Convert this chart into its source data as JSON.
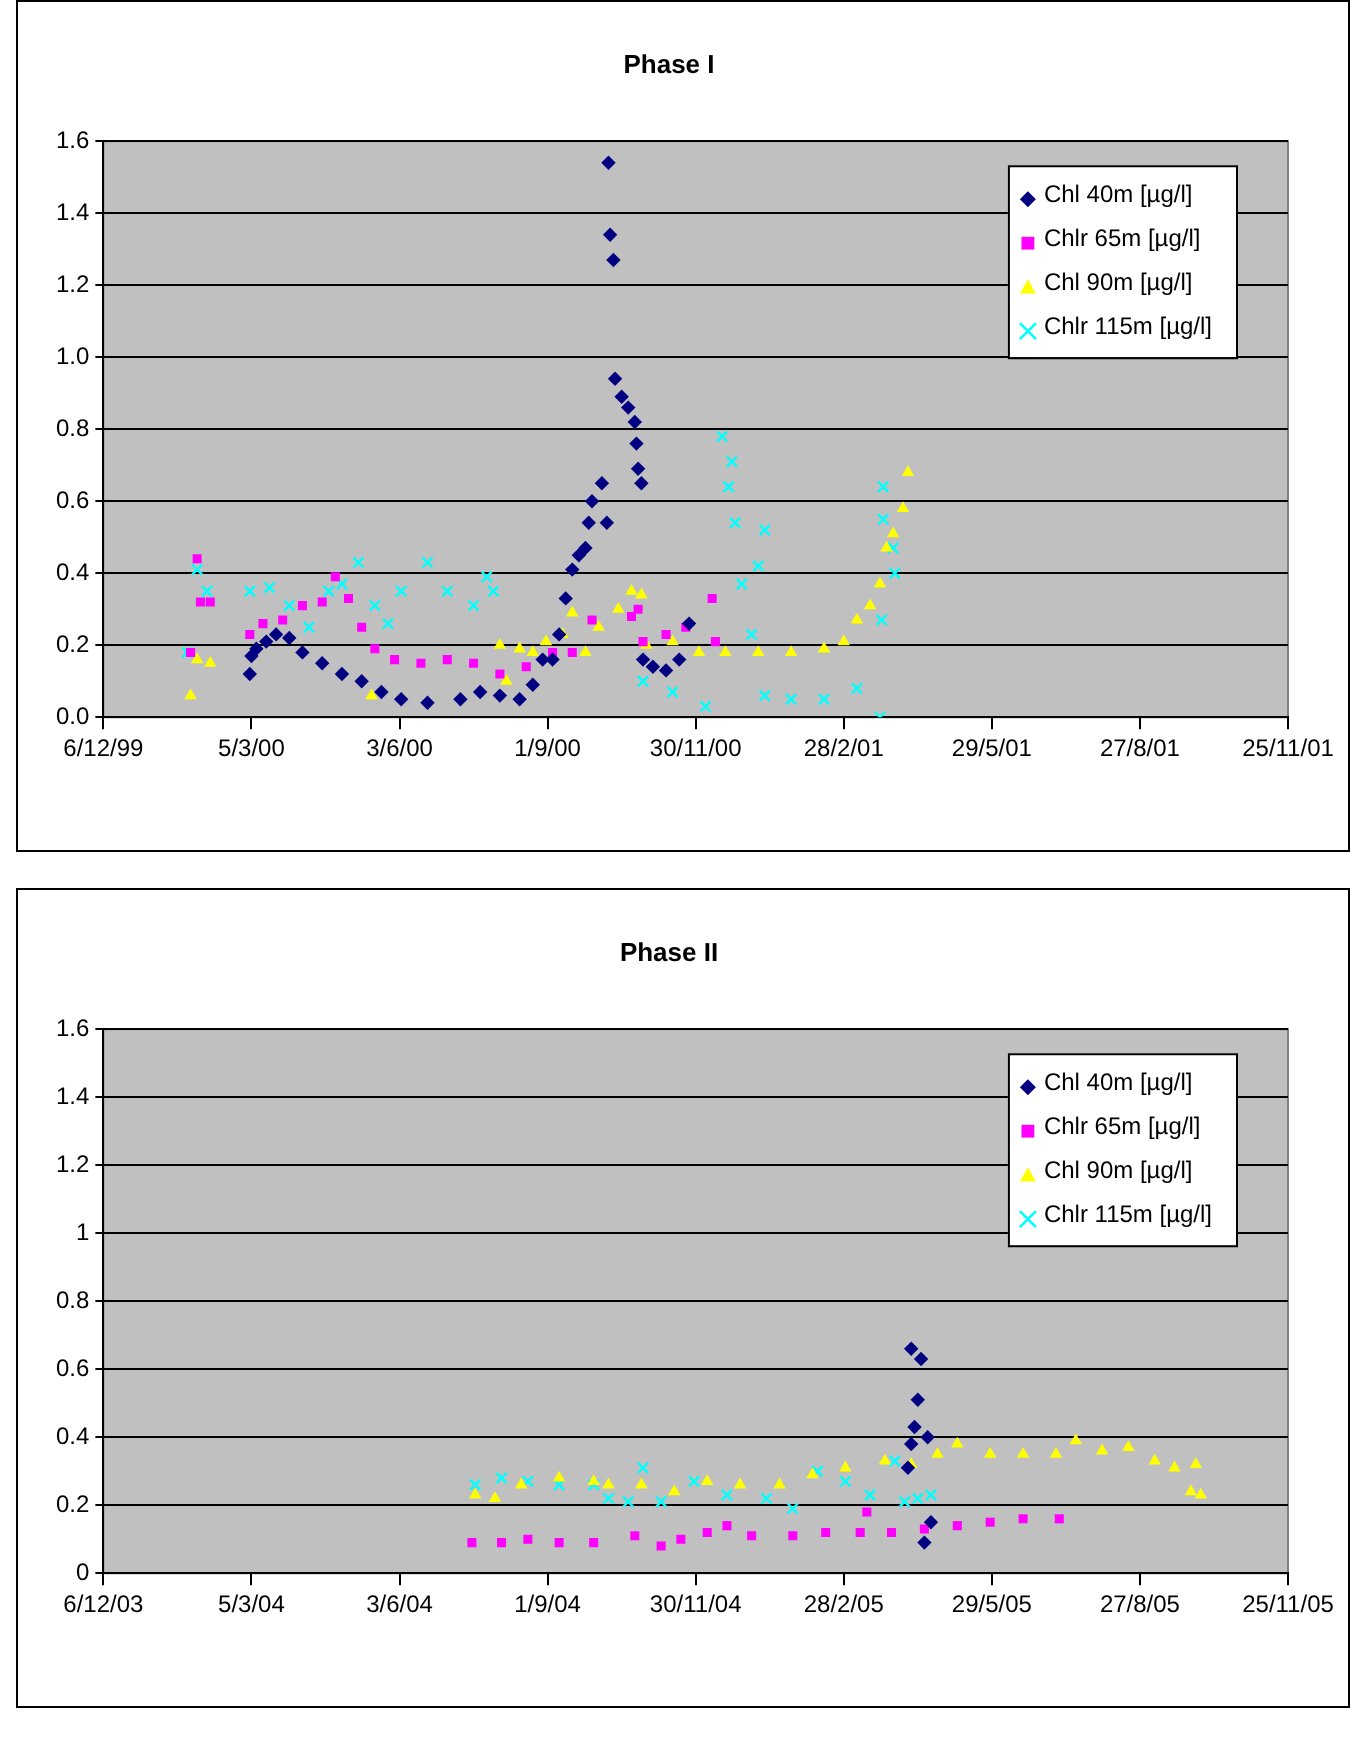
{
  "chart_data": [
    {
      "type": "scatter",
      "title": "Phase I",
      "grid": "y",
      "legend": "top right",
      "xlim": [
        "1999-12-06",
        "2001-11-25"
      ],
      "ylim": [
        0,
        1.6
      ],
      "xticks": [
        {
          "value": "1999-12-06",
          "label": "6/12/99"
        },
        {
          "value": "2000-03-05",
          "label": "5/3/00"
        },
        {
          "value": "2000-06-03",
          "label": "3/6/00"
        },
        {
          "value": "2000-09-01",
          "label": "1/9/00"
        },
        {
          "value": "2000-11-30",
          "label": "30/11/00"
        },
        {
          "value": "2001-02-28",
          "label": "28/2/01"
        },
        {
          "value": "2001-05-29",
          "label": "29/5/01"
        },
        {
          "value": "2001-08-27",
          "label": "27/8/01"
        },
        {
          "value": "2001-11-25",
          "label": "25/11/01"
        }
      ],
      "yticks": [
        {
          "value": 0,
          "label": "0.0"
        },
        0.2,
        0.4,
        0.6,
        0.8,
        {
          "value": 1,
          "label": "1.0"
        },
        1.2,
        1.4,
        1.6
      ],
      "series": [
        {
          "name": "Chl 40m [µg/l]",
          "color": "#000080",
          "marker": "diamond",
          "x": [
            "2000-03-04",
            "2000-03-05",
            "2000-03-08",
            "2000-03-14",
            "2000-03-20",
            "2000-03-28",
            "2000-04-05",
            "2000-04-17",
            "2000-04-29",
            "2000-05-11",
            "2000-05-23",
            "2000-06-04",
            "2000-06-20",
            "2000-07-10",
            "2000-07-22",
            "2000-08-03",
            "2000-08-15",
            "2000-08-23",
            "2000-08-29",
            "2000-09-04",
            "2000-09-08",
            "2000-09-12",
            "2000-09-16",
            "2000-09-20",
            "2000-09-24",
            "2000-09-26",
            "2000-09-28",
            "2000-10-04",
            "2000-10-07",
            "2000-10-08",
            "2000-10-09",
            "2000-10-11",
            "2000-10-12",
            "2000-10-16",
            "2000-10-20",
            "2000-10-24",
            "2000-10-25",
            "2000-10-26",
            "2000-10-28",
            "2000-10-29",
            "2000-11-04",
            "2000-11-12",
            "2000-11-20",
            "2000-11-26"
          ],
          "values": [
            0.12,
            0.17,
            0.19,
            0.21,
            0.23,
            0.22,
            0.18,
            0.15,
            0.12,
            0.1,
            0.07,
            0.05,
            0.04,
            0.05,
            0.07,
            0.06,
            0.05,
            0.09,
            0.16,
            0.16,
            0.23,
            0.33,
            0.41,
            0.45,
            0.47,
            0.54,
            0.6,
            0.65,
            0.54,
            1.54,
            1.34,
            1.27,
            0.94,
            0.89,
            0.86,
            0.82,
            0.76,
            0.69,
            0.65,
            0.16,
            0.14,
            0.13,
            0.16,
            0.26
          ]
        },
        {
          "name": "Chlr 65m [µg/l]",
          "color": "#ff00ff",
          "marker": "square",
          "x": [
            "2000-01-28",
            "2000-02-01",
            "2000-02-03",
            "2000-02-09",
            "2000-03-04",
            "2000-03-12",
            "2000-03-24",
            "2000-04-05",
            "2000-04-17",
            "2000-04-25",
            "2000-05-03",
            "2000-05-11",
            "2000-05-19",
            "2000-05-31",
            "2000-06-16",
            "2000-07-02",
            "2000-07-18",
            "2000-08-03",
            "2000-08-19",
            "2000-09-04",
            "2000-09-16",
            "2000-09-28",
            "2000-10-22",
            "2000-10-26",
            "2000-10-29",
            "2000-11-12",
            "2000-11-24",
            "2000-12-10",
            "2000-12-12"
          ],
          "values": [
            0.18,
            0.44,
            0.32,
            0.32,
            0.23,
            0.26,
            0.27,
            0.31,
            0.32,
            0.39,
            0.33,
            0.25,
            0.19,
            0.16,
            0.15,
            0.16,
            0.15,
            0.12,
            0.14,
            0.18,
            0.18,
            0.27,
            0.28,
            0.3,
            0.21,
            0.23,
            0.25,
            0.33,
            0.21
          ]
        },
        {
          "name": "Chl 90m [µg/l]",
          "color": "#ffff00",
          "marker": "triangle",
          "x": [
            "2000-01-28",
            "2000-02-01",
            "2000-02-09",
            "2000-05-17",
            "2000-08-03",
            "2000-08-07",
            "2000-08-15",
            "2000-08-23",
            "2000-08-31",
            "2000-09-10",
            "2000-09-16",
            "2000-09-24",
            "2000-10-02",
            "2000-10-14",
            "2000-10-22",
            "2000-10-28",
            "2000-10-31",
            "2000-11-16",
            "2000-12-02",
            "2000-12-18",
            "2001-01-07",
            "2001-01-27",
            "2001-02-16",
            "2001-02-28",
            "2001-03-08",
            "2001-03-16",
            "2001-03-22",
            "2001-03-26",
            "2001-03-30",
            "2001-04-05",
            "2001-04-08"
          ],
          "values": [
            0.06,
            0.16,
            0.15,
            0.06,
            0.2,
            0.1,
            0.19,
            0.18,
            0.21,
            0.23,
            0.29,
            0.18,
            0.25,
            0.3,
            0.35,
            0.34,
            0.2,
            0.21,
            0.18,
            0.18,
            0.18,
            0.18,
            0.19,
            0.21,
            0.27,
            0.31,
            0.37,
            0.47,
            0.51,
            0.58,
            0.68
          ]
        },
        {
          "name": "Chlr 115m [µg/l]",
          "color": "#00ffff",
          "marker": "cross",
          "x": [
            "2000-01-26",
            "2000-02-01",
            "2000-02-07",
            "2000-03-04",
            "2000-03-16",
            "2000-03-28",
            "2000-04-09",
            "2000-04-21",
            "2000-04-29",
            "2000-05-09",
            "2000-05-19",
            "2000-05-27",
            "2000-06-04",
            "2000-06-20",
            "2000-07-02",
            "2000-07-18",
            "2000-07-26",
            "2000-07-30",
            "2000-10-29",
            "2000-11-16",
            "2000-12-06",
            "2000-12-16",
            "2000-12-20",
            "2000-12-22",
            "2000-12-24",
            "2000-12-28",
            "2001-01-03",
            "2001-01-07",
            "2001-01-11",
            "2001-01-11",
            "2001-01-27",
            "2001-02-16",
            "2001-03-08",
            "2001-03-22",
            "2001-03-23",
            "2001-03-24",
            "2001-03-24",
            "2001-03-30",
            "2001-03-31"
          ],
          "values": [
            0.18,
            0.41,
            0.35,
            0.35,
            0.36,
            0.31,
            0.25,
            0.35,
            0.37,
            0.43,
            0.31,
            0.26,
            0.35,
            0.43,
            0.35,
            0.31,
            0.39,
            0.35,
            0.1,
            0.07,
            0.03,
            0.78,
            0.64,
            0.71,
            0.54,
            0.37,
            0.23,
            0.42,
            0.52,
            0.06,
            0.05,
            0.05,
            0.08,
            0,
            0.27,
            0.64,
            0.55,
            0.47,
            0.4
          ]
        }
      ]
    },
    {
      "type": "scatter",
      "title": "Phase II",
      "grid": "y",
      "legend": "top right",
      "xlim": [
        "2003-12-06",
        "2005-11-25"
      ],
      "ylim": [
        0,
        1.6
      ],
      "xticks": [
        {
          "value": "2003-12-06",
          "label": "6/12/03"
        },
        {
          "value": "2004-03-05",
          "label": "5/3/04"
        },
        {
          "value": "2004-06-03",
          "label": "3/6/04"
        },
        {
          "value": "2004-09-01",
          "label": "1/9/04"
        },
        {
          "value": "2004-11-30",
          "label": "30/11/04"
        },
        {
          "value": "2005-02-28",
          "label": "28/2/05"
        },
        {
          "value": "2005-05-29",
          "label": "29/5/05"
        },
        {
          "value": "2005-08-27",
          "label": "27/8/05"
        },
        {
          "value": "2005-11-25",
          "label": "25/11/05"
        }
      ],
      "yticks": [
        0,
        0.2,
        0.4,
        0.6,
        0.8,
        1,
        1.2,
        1.4,
        1.6
      ],
      "series": [
        {
          "name": "Chl 40m [µg/l]",
          "color": "#000080",
          "marker": "diamond",
          "x": [
            "2005-04-08",
            "2005-04-10",
            "2005-04-10",
            "2005-04-12",
            "2005-04-14",
            "2005-04-16",
            "2005-04-18",
            "2005-04-20",
            "2005-04-22"
          ],
          "values": [
            0.31,
            0.38,
            0.66,
            0.43,
            0.51,
            0.63,
            0.09,
            0.4,
            0.15
          ]
        },
        {
          "name": "Chlr 65m [µg/l]",
          "color": "#ff00ff",
          "marker": "square",
          "x": [
            "2004-07-17",
            "2004-08-04",
            "2004-08-20",
            "2004-09-08",
            "2004-09-29",
            "2004-10-24",
            "2004-11-09",
            "2004-11-21",
            "2004-12-07",
            "2004-12-19",
            "2005-01-03",
            "2005-01-28",
            "2005-02-17",
            "2005-03-10",
            "2005-03-14",
            "2005-03-29",
            "2005-04-18",
            "2005-05-08",
            "2005-05-28",
            "2005-06-17",
            "2005-07-09"
          ],
          "values": [
            0.09,
            0.09,
            0.1,
            0.09,
            0.09,
            0.11,
            0.08,
            0.1,
            0.12,
            0.14,
            0.11,
            0.11,
            0.12,
            0.12,
            0.18,
            0.12,
            0.13,
            0.14,
            0.15,
            0.16,
            0.16
          ]
        },
        {
          "name": "Chl 90m [µg/l]",
          "color": "#ffff00",
          "marker": "triangle",
          "x": [
            "2004-07-19",
            "2004-07-31",
            "2004-08-16",
            "2004-09-08",
            "2004-09-29",
            "2004-10-08",
            "2004-10-28",
            "2004-11-17",
            "2004-12-07",
            "2004-12-27",
            "2005-01-20",
            "2005-02-09",
            "2005-03-01",
            "2005-03-25",
            "2005-04-10",
            "2005-04-26",
            "2005-05-08",
            "2005-05-28",
            "2005-06-17",
            "2005-07-07",
            "2005-07-19",
            "2005-08-04",
            "2005-08-20",
            "2005-09-05",
            "2005-09-17",
            "2005-09-27",
            "2005-09-30",
            "2005-10-03"
          ],
          "values": [
            0.23,
            0.22,
            0.26,
            0.28,
            0.27,
            0.26,
            0.26,
            0.24,
            0.27,
            0.26,
            0.26,
            0.29,
            0.31,
            0.33,
            0.32,
            0.35,
            0.38,
            0.35,
            0.35,
            0.35,
            0.39,
            0.36,
            0.37,
            0.33,
            0.31,
            0.24,
            0.32,
            0.23
          ]
        },
        {
          "name": "Chlr 115m [µg/l]",
          "color": "#00ffff",
          "marker": "cross",
          "x": [
            "2004-07-19",
            "2004-08-04",
            "2004-08-20",
            "2004-09-08",
            "2004-09-29",
            "2004-10-08",
            "2004-10-20",
            "2004-10-29",
            "2004-11-09",
            "2004-11-29",
            "2004-12-19",
            "2005-01-12",
            "2005-01-28",
            "2005-02-12",
            "2005-03-01",
            "2005-03-16",
            "2005-03-31",
            "2005-04-06",
            "2005-04-14",
            "2005-04-22"
          ],
          "values": [
            0.26,
            0.28,
            0.27,
            0.26,
            0.26,
            0.22,
            0.21,
            0.31,
            0.21,
            0.27,
            0.23,
            0.22,
            0.19,
            0.3,
            0.27,
            0.23,
            0.33,
            0.21,
            0.22,
            0.23
          ]
        }
      ]
    }
  ]
}
